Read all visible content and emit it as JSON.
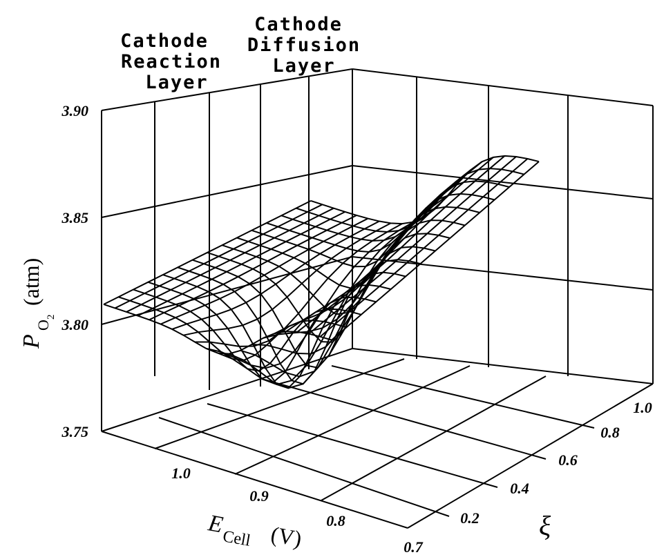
{
  "chart_data": {
    "type": "surface",
    "region_labels": [
      {
        "lines": [
          "Cathode",
          "Reaction",
          "Layer"
        ]
      },
      {
        "lines": [
          "Cathode",
          "Diffusion",
          "Layer"
        ]
      }
    ],
    "zlabel": {
      "symbol": "P",
      "subscript_main": "O",
      "subscript_sub": "2",
      "unit": "(atm)"
    },
    "xlabel": {
      "symbol": "E",
      "subscript": "Cell",
      "unit": "(V)"
    },
    "ylabel": {
      "symbol": "ξ"
    },
    "z_ticks": [
      "3.75",
      "3.80",
      "3.85",
      "3.90"
    ],
    "x_ticks": [
      "1.0",
      "0.9",
      "0.8",
      "0.7"
    ],
    "y_ticks": [
      "0.2",
      "0.4",
      "0.6",
      "0.8",
      "1.0"
    ],
    "xlim": [
      0.7,
      1.05
    ],
    "ylim": [
      0.0,
      1.0
    ],
    "zlim": [
      3.75,
      3.9
    ],
    "grid": true,
    "surface": {
      "description_points": {
        "front_edge_xi0": "≈3.81 atm at E=1.05 V, nearly flat, slight rise toward low E",
        "trough_min": "≈3.77 atm near ξ≈0.4-0.6, E≈0.8-0.9 V",
        "back_edge_xi1_low_E": "≈3.865 atm at E=0.7 V"
      },
      "z_min_atm": 3.77,
      "z_front_atm": 3.81,
      "z_back_high_atm": 3.865
    }
  }
}
